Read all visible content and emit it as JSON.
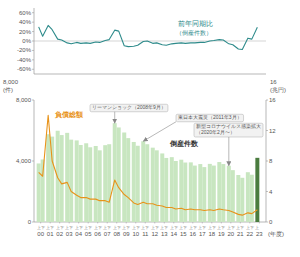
{
  "chart_data": [
    {
      "type": "line",
      "categories": [
        "00",
        "01",
        "02",
        "03",
        "04",
        "05",
        "06",
        "07",
        "08",
        "09",
        "10",
        "11",
        "12",
        "13",
        "14",
        "15",
        "16",
        "17",
        "18",
        "19",
        "20",
        "21",
        "22",
        "23"
      ],
      "series": [
        {
          "color": "#2e8b8b",
          "values": [
            30,
            33,
            4,
            -4,
            -3,
            -4,
            -2,
            1,
            23,
            -10,
            -11,
            -1,
            -5,
            -8,
            -6,
            -4,
            -4,
            -3,
            0,
            3,
            -6,
            -17,
            6,
            29
          ]
        },
        {
          "color": "#2e8b8b",
          "values": [
            10,
            24,
            2,
            -6,
            -5,
            -5,
            -3,
            3,
            21,
            -12,
            -9,
            0,
            -4,
            -9,
            -5,
            -5,
            -4,
            -3,
            1,
            2,
            -8,
            -18,
            4,
            null
          ]
        }
      ],
      "ylim": [
        -70,
        70
      ],
      "yticks": [
        {
          "value": -60,
          "label": "-60%"
        },
        {
          "value": -40,
          "label": "-40%"
        },
        {
          "value": -20,
          "label": "-20%"
        },
        {
          "value": 0,
          "label": "0%"
        },
        {
          "value": 20,
          "label": "20%"
        },
        {
          "value": 40,
          "label": "40%"
        },
        {
          "value": 60,
          "label": "60%"
        }
      ],
      "tick_labels": "y",
      "grid": false,
      "annotations": [
        {
          "text": "前年同期比",
          "color": "#2e8b8b"
        },
        {
          "text": "（倒産件数）",
          "color": "#2e8b8b"
        }
      ]
    },
    {
      "type": "bar",
      "categories": [
        "00",
        "01",
        "02",
        "03",
        "04",
        "05",
        "06",
        "07",
        "08",
        "09",
        "10",
        "11",
        "12",
        "13",
        "14",
        "15",
        "16",
        "17",
        "18",
        "19",
        "20",
        "21",
        "22",
        "23"
      ],
      "series": [
        {
          "name": "上",
          "type": "bar",
          "colors": [
            "#c8e6c0",
            "#c8e6c0",
            "#c8e6c0",
            "#c8e6c0",
            "#c8e6c0",
            "#c8e6c0",
            "#c8e6c0",
            "#c8e6c0",
            "#c8e6c0",
            "#c8e6c0",
            "#c8e6c0",
            "#c8e6c0",
            "#c8e6c0",
            "#c8e6c0",
            "#c8e6c0",
            "#c8e6c0",
            "#c8e6c0",
            "#c8e6c0",
            "#c8e6c0",
            "#c8e6c0",
            "#c8e6c0",
            "#c8e6c0",
            "#c8e6c0",
            "#4a7c3f"
          ],
          "values": [
            3840,
            5755,
            5984,
            5846,
            5351,
            5162,
            4985,
            5038,
            6482,
            5869,
            5248,
            5296,
            4874,
            4496,
            4252,
            4085,
            3910,
            3799,
            3812,
            3931,
            3688,
            3082,
            3265,
            4208
          ]
        },
        {
          "name": "下",
          "type": "bar",
          "color": "#c8e6c0",
          "values": [
            4100,
            5600,
            5700,
            5400,
            5050,
            4900,
            4700,
            5100,
            6200,
            5500,
            5000,
            5100,
            4700,
            4200,
            4000,
            3900,
            3700,
            3600,
            3700,
            3800,
            3400,
            2900,
            3100,
            null
          ]
        },
        {
          "type": "line",
          "axis": "y2",
          "color": "#e8931a",
          "values": [
            6.5,
            14.0,
            5.8,
            5.2,
            3.5,
            3.2,
            3.0,
            2.8,
            5.5,
            3.6,
            2.5,
            2.6,
            2.4,
            2.1,
            1.9,
            1.8,
            1.7,
            1.6,
            1.6,
            1.7,
            1.5,
            1.0,
            1.2,
            1.6
          ]
        },
        {
          "type": "line",
          "axis": "y2",
          "color": "#e8931a",
          "values": [
            6.0,
            8.0,
            5.0,
            4.0,
            3.2,
            3.0,
            2.8,
            2.6,
            4.5,
            3.2,
            2.3,
            2.4,
            2.2,
            1.9,
            1.7,
            1.6,
            1.6,
            1.5,
            1.5,
            1.6,
            1.3,
            0.9,
            1.1,
            null
          ]
        }
      ],
      "ylim": [
        0,
        8000
      ],
      "yticks": [
        0,
        {
          "value": 4000,
          "label": "4,000"
        },
        {
          "value": 8000,
          "label": "8,000"
        }
      ],
      "y2lim": [
        0,
        16
      ],
      "y2ticks": [
        0,
        4,
        8,
        12,
        16
      ],
      "xlabel": "(年度)",
      "ylabel": "8,000\n(件)",
      "y2label": "16\n(兆円)",
      "grid": false,
      "annotations": [
        {
          "text": "負債総額",
          "color": "#e8931a"
        },
        {
          "text": "倒産件数",
          "color": "#333333"
        },
        {
          "text": "リーマンショック（2008年9月）",
          "color": "#555555",
          "x": "08",
          "series": 0,
          "y": 6482
        },
        {
          "text": "東日本大震災（2011年3月）",
          "color": "#555555",
          "x": "11",
          "series": 0,
          "y": 5296
        },
        {
          "text": "新型コロナウイルス感染拡大\n（2020年2月〜）",
          "color": "#555555",
          "x": "20",
          "series": 0,
          "y": 3688
        }
      ]
    }
  ]
}
